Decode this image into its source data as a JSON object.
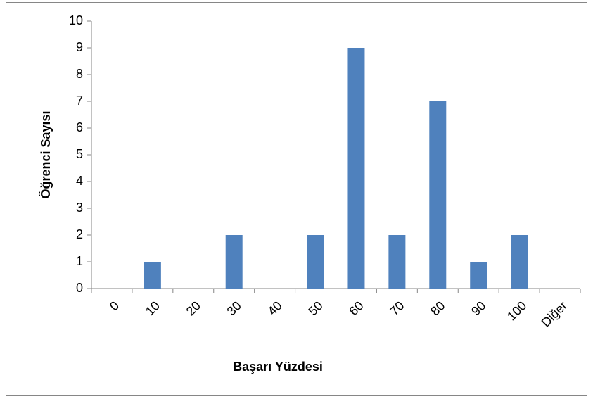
{
  "chart_data": {
    "type": "bar",
    "x_label": "Başarı Yüzdesi",
    "y_label": "Öğrenci Sayısı",
    "categories": [
      "0",
      "10",
      "20",
      "30",
      "40",
      "50",
      "60",
      "70",
      "80",
      "90",
      "100",
      "Diğer"
    ],
    "values": [
      0,
      1,
      0,
      2,
      0,
      2,
      9,
      2,
      7,
      1,
      2,
      0
    ],
    "color": "#4f81bd",
    "ylim": [
      0,
      10
    ],
    "yticks": [
      0,
      1,
      2,
      3,
      4,
      5,
      6,
      7,
      8,
      9,
      10
    ],
    "grid": false
  }
}
